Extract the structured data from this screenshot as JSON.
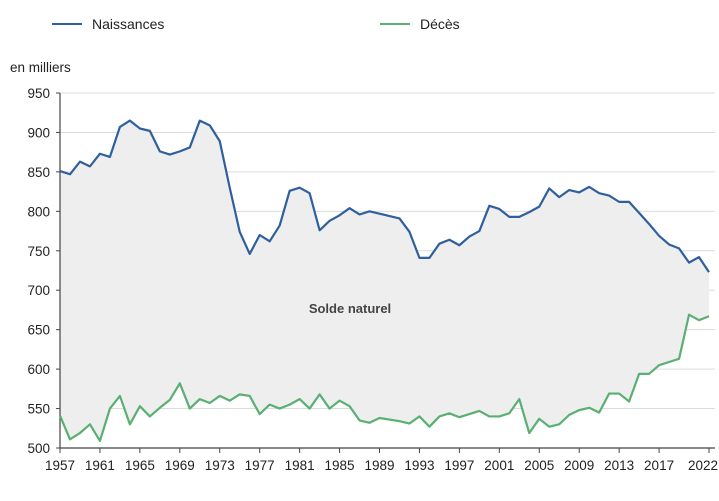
{
  "chart_data": {
    "type": "line",
    "unit_label": "en milliers",
    "area_label": "Solde naturel",
    "x": [
      1957,
      1958,
      1959,
      1960,
      1961,
      1962,
      1963,
      1964,
      1965,
      1966,
      1967,
      1968,
      1969,
      1970,
      1971,
      1972,
      1973,
      1974,
      1975,
      1976,
      1977,
      1978,
      1979,
      1980,
      1981,
      1982,
      1983,
      1984,
      1985,
      1986,
      1987,
      1988,
      1989,
      1990,
      1991,
      1992,
      1993,
      1994,
      1995,
      1996,
      1997,
      1998,
      1999,
      2000,
      2001,
      2002,
      2003,
      2004,
      2005,
      2006,
      2007,
      2008,
      2009,
      2010,
      2011,
      2012,
      2013,
      2014,
      2015,
      2016,
      2017,
      2018,
      2019,
      2020,
      2021,
      2022
    ],
    "series": [
      {
        "name": "Naissances",
        "color": "#2f5f9e",
        "values": [
          851,
          847,
          863,
          857,
          873,
          869,
          907,
          915,
          905,
          902,
          876,
          872,
          876,
          881,
          915,
          909,
          889,
          830,
          774,
          746,
          770,
          762,
          782,
          826,
          830,
          823,
          776,
          788,
          795,
          804,
          796,
          800,
          797,
          794,
          791,
          774,
          741,
          741,
          759,
          764,
          757,
          768,
          775,
          807,
          803,
          793,
          793,
          799,
          806,
          829,
          818,
          827,
          824,
          831,
          823,
          820,
          812,
          812,
          798,
          784,
          769,
          758,
          753,
          735,
          742,
          723
        ]
      },
      {
        "name": "Décès",
        "color": "#5aaf72",
        "values": [
          541,
          511,
          519,
          530,
          509,
          550,
          566,
          530,
          553,
          540,
          551,
          561,
          582,
          550,
          562,
          557,
          566,
          560,
          568,
          566,
          543,
          555,
          550,
          555,
          562,
          550,
          568,
          550,
          560,
          553,
          535,
          532,
          538,
          536,
          534,
          531,
          540,
          527,
          540,
          544,
          539,
          543,
          547,
          540,
          540,
          544,
          562,
          519,
          537,
          527,
          530,
          542,
          548,
          551,
          545,
          569,
          569,
          559,
          594,
          594,
          605,
          609,
          613,
          669,
          662,
          667
        ]
      }
    ],
    "ylim": [
      500,
      950
    ],
    "yticks": [
      500,
      550,
      600,
      650,
      700,
      750,
      800,
      850,
      900,
      950
    ],
    "xticks": [
      1957,
      1961,
      1965,
      1969,
      1973,
      1977,
      1981,
      1985,
      1989,
      1993,
      1997,
      2001,
      2005,
      2009,
      2013,
      2017,
      2022
    ],
    "fill_between": {
      "color": "#eeeeee"
    },
    "grid": "horizontal",
    "legend": "top"
  }
}
